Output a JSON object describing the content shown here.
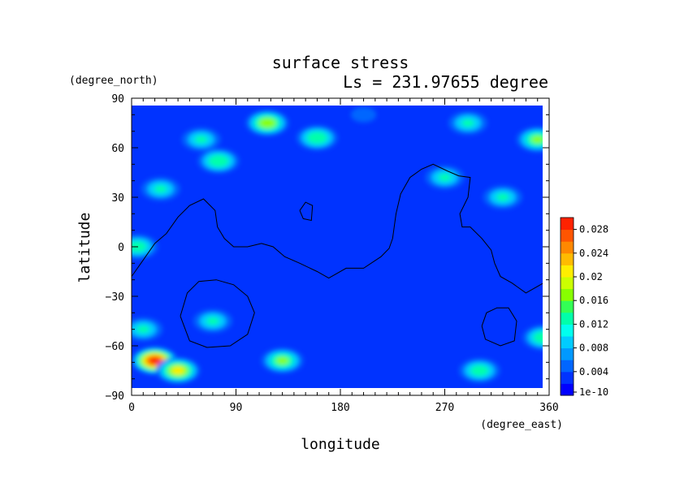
{
  "chart_data": {
    "type": "heatmap",
    "title": "surface stress",
    "subtitle": "Ls = 231.97655 degree",
    "xlabel": "longitude",
    "ylabel": "latitude",
    "x_units": "(degree_east)",
    "y_units": "(degree_north)",
    "xlim": [
      0,
      360
    ],
    "ylim": [
      -90,
      90
    ],
    "x_ticks": [
      "0",
      "90",
      "180",
      "270",
      "360"
    ],
    "y_ticks": [
      "90",
      "60",
      "30",
      "0",
      "−30",
      "−60",
      "−90"
    ],
    "x_tick_values": [
      0,
      90,
      180,
      270,
      360
    ],
    "y_tick_values": [
      90,
      60,
      30,
      0,
      -30,
      -60,
      -90
    ],
    "grid": false,
    "colorbar": {
      "placement": "right",
      "min": 0,
      "max": 0.03,
      "tick_labels": [
        "1e-10",
        "0.004",
        "0.008",
        "0.012",
        "0.016",
        "0.02",
        "0.024",
        "0.028"
      ],
      "tick_values": [
        0.0,
        0.004,
        0.008,
        0.012,
        0.016,
        0.02,
        0.024,
        0.028
      ],
      "colors": [
        "#0000ff",
        "#0033ff",
        "#0066ff",
        "#0099ff",
        "#00ccff",
        "#00ffee",
        "#00ffaa",
        "#33ff55",
        "#88ff00",
        "#ccff00",
        "#ffee00",
        "#ffbb00",
        "#ff8800",
        "#ff5500",
        "#ff2200"
      ]
    },
    "features": [
      {
        "lon": 117,
        "lat": 75,
        "value": 0.018
      },
      {
        "lon": 160,
        "lat": 66,
        "value": 0.015
      },
      {
        "lon": 60,
        "lat": 65,
        "value": 0.012
      },
      {
        "lon": 75,
        "lat": 52,
        "value": 0.015
      },
      {
        "lon": 25,
        "lat": 35,
        "value": 0.012
      },
      {
        "lon": 5,
        "lat": 0,
        "value": 0.014
      },
      {
        "lon": 10,
        "lat": -50,
        "value": 0.012
      },
      {
        "lon": 20,
        "lat": -69,
        "value": 0.028
      },
      {
        "lon": 40,
        "lat": -75,
        "value": 0.02
      },
      {
        "lon": 70,
        "lat": -45,
        "value": 0.012
      },
      {
        "lon": 130,
        "lat": -69,
        "value": 0.016
      },
      {
        "lon": 290,
        "lat": 75,
        "value": 0.012
      },
      {
        "lon": 350,
        "lat": 65,
        "value": 0.016
      },
      {
        "lon": 270,
        "lat": 42,
        "value": 0.012
      },
      {
        "lon": 320,
        "lat": 30,
        "value": 0.012
      },
      {
        "lon": 355,
        "lat": -55,
        "value": 0.015
      },
      {
        "lon": 300,
        "lat": -75,
        "value": 0.014
      },
      {
        "lon": 200,
        "lat": 80,
        "value": 0.006
      }
    ],
    "background_value": 0.002,
    "contours": [
      [
        [
          0,
          -18
        ],
        [
          10,
          -8
        ],
        [
          20,
          2
        ],
        [
          30,
          8
        ],
        [
          40,
          18
        ],
        [
          50,
          25
        ],
        [
          62,
          29
        ],
        [
          72,
          22
        ],
        [
          74,
          12
        ],
        [
          80,
          5
        ],
        [
          88,
          0
        ],
        [
          100,
          0
        ],
        [
          112,
          2
        ],
        [
          122,
          0
        ],
        [
          132,
          -6
        ],
        [
          145,
          -10
        ],
        [
          160,
          -15
        ],
        [
          170,
          -19
        ],
        [
          185,
          -13
        ],
        [
          200,
          -13
        ],
        [
          215,
          -6
        ],
        [
          222,
          -1
        ],
        [
          225,
          5
        ],
        [
          228,
          20
        ],
        [
          232,
          32
        ],
        [
          240,
          42
        ],
        [
          250,
          47
        ],
        [
          260,
          50
        ],
        [
          272,
          46
        ],
        [
          282,
          43
        ],
        [
          292,
          42
        ],
        [
          290,
          30
        ],
        [
          283,
          20
        ],
        [
          285,
          12
        ],
        [
          292,
          12
        ],
        [
          302,
          5
        ],
        [
          310,
          -2
        ],
        [
          313,
          -10
        ],
        [
          318,
          -18
        ],
        [
          328,
          -22
        ],
        [
          340,
          -28
        ],
        [
          350,
          -24
        ],
        [
          360,
          -20
        ]
      ],
      [
        [
          145,
          22
        ],
        [
          150,
          27
        ],
        [
          156,
          25
        ],
        [
          155,
          16
        ],
        [
          148,
          17
        ],
        [
          145,
          22
        ]
      ],
      [
        [
          42,
          -42
        ],
        [
          48,
          -28
        ],
        [
          58,
          -21
        ],
        [
          73,
          -20
        ],
        [
          88,
          -23
        ],
        [
          100,
          -30
        ],
        [
          106,
          -40
        ],
        [
          100,
          -53
        ],
        [
          85,
          -60
        ],
        [
          65,
          -61
        ],
        [
          50,
          -57
        ],
        [
          42,
          -42
        ]
      ],
      [
        [
          302,
          -48
        ],
        [
          306,
          -40
        ],
        [
          315,
          -37
        ],
        [
          325,
          -37
        ],
        [
          332,
          -45
        ],
        [
          330,
          -57
        ],
        [
          318,
          -60
        ],
        [
          305,
          -56
        ],
        [
          302,
          -48
        ]
      ]
    ]
  }
}
